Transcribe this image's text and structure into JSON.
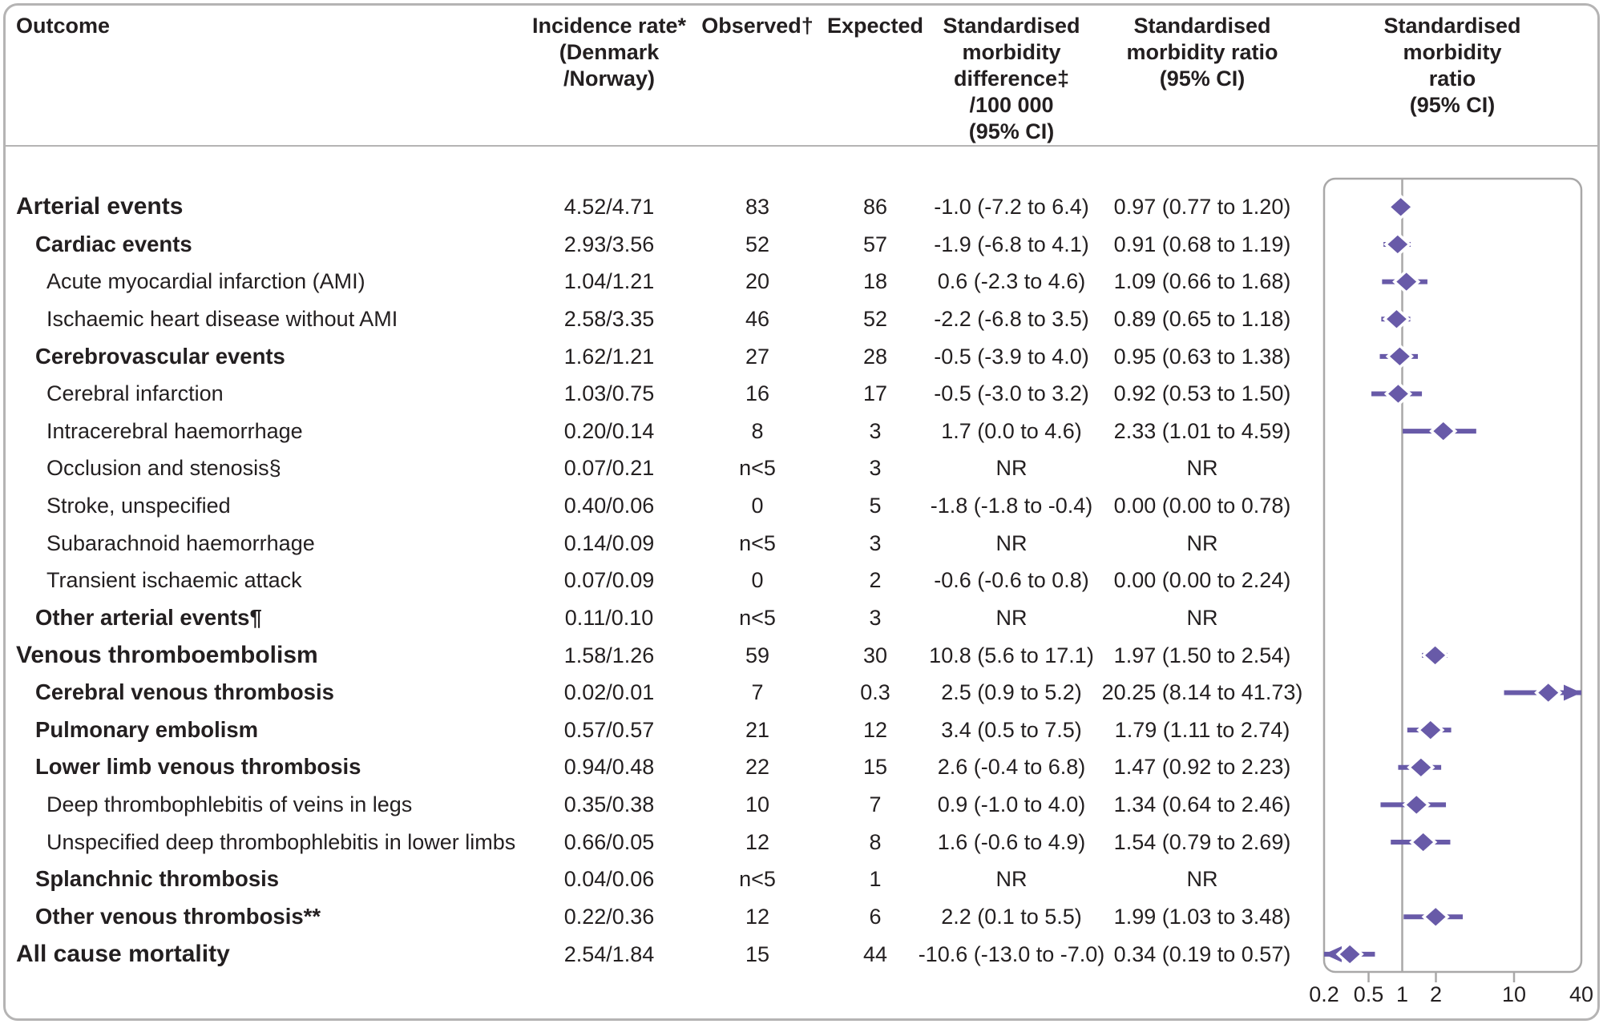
{
  "colors": {
    "accent": "#685aa8",
    "frame_gray": "#b5b4b4",
    "panel_gray": "#a9a8a8",
    "text": "#231f20"
  },
  "header": {
    "outcome": "Outcome",
    "incidence": "Incidence rate*\n(Denmark\n/Norway)",
    "observed": "Observed†",
    "expected": "Expected",
    "smd": "Standardised\nmorbidity\ndifference‡\n/100 000\n(95% CI)",
    "smr": "Standardised\nmorbidity ratio\n(95% CI)",
    "forest": "Standardised\nmorbidity ratio\n(95% CI)"
  },
  "chart_data": {
    "type": "forest",
    "x_scale": "log",
    "x_range": [
      0.2,
      40
    ],
    "x_ticks": [
      0.2,
      0.5,
      1,
      2,
      10,
      40
    ],
    "x_tick_labels": [
      "0.2",
      "0.5",
      "1",
      "2",
      "10",
      "40"
    ],
    "x_tick_marks": [
      0.5,
      2,
      10
    ],
    "reference_line": 1,
    "legend": "Standardised morbidity ratio (95% CI)",
    "columns": [
      "Outcome",
      "Incidence rate* (Denmark/Norway)",
      "Observed†",
      "Expected",
      "Standardised morbidity difference‡ /100 000 (95% CI)",
      "Standardised morbidity ratio (95% CI)"
    ],
    "rows": [
      {
        "outcome": "Arterial events",
        "indent": 0,
        "bold": true,
        "rate": "4.52/4.71",
        "observed": "83",
        "expected": "86",
        "smd": "-1.0 (-7.2 to 6.4)",
        "smr": "0.97 (0.77 to 1.20)",
        "est": 0.97,
        "lo": 0.77,
        "hi": 1.2
      },
      {
        "outcome": "Cardiac events",
        "indent": 1,
        "bold": true,
        "rate": "2.93/3.56",
        "observed": "52",
        "expected": "57",
        "smd": "-1.9 (-6.8 to 4.1)",
        "smr": "0.91 (0.68 to 1.19)",
        "est": 0.91,
        "lo": 0.68,
        "hi": 1.19
      },
      {
        "outcome": "Acute myocardial infarction (AMI)",
        "indent": 2,
        "bold": false,
        "rate": "1.04/1.21",
        "observed": "20",
        "expected": "18",
        "smd": "0.6 (-2.3 to 4.6)",
        "smr": "1.09 (0.66 to 1.68)",
        "est": 1.09,
        "lo": 0.66,
        "hi": 1.68
      },
      {
        "outcome": "Ischaemic heart disease without AMI",
        "indent": 2,
        "bold": false,
        "rate": "2.58/3.35",
        "observed": "46",
        "expected": "52",
        "smd": "-2.2 (-6.8 to 3.5)",
        "smr": "0.89 (0.65 to 1.18)",
        "est": 0.89,
        "lo": 0.65,
        "hi": 1.18
      },
      {
        "outcome": "Cerebrovascular events",
        "indent": 1,
        "bold": true,
        "rate": "1.62/1.21",
        "observed": "27",
        "expected": "28",
        "smd": "-0.5 (-3.9 to 4.0)",
        "smr": "0.95 (0.63 to 1.38)",
        "est": 0.95,
        "lo": 0.63,
        "hi": 1.38
      },
      {
        "outcome": "Cerebral infarction",
        "indent": 2,
        "bold": false,
        "rate": "1.03/0.75",
        "observed": "16",
        "expected": "17",
        "smd": "-0.5 (-3.0 to 3.2)",
        "smr": "0.92 (0.53 to 1.50)",
        "est": 0.92,
        "lo": 0.53,
        "hi": 1.5
      },
      {
        "outcome": "Intracerebral haemorrhage",
        "indent": 2,
        "bold": false,
        "rate": "0.20/0.14",
        "observed": "8",
        "expected": "3",
        "smd": "1.7 (0.0 to 4.6)",
        "smr": "2.33 (1.01 to 4.59)",
        "est": 2.33,
        "lo": 1.01,
        "hi": 4.59
      },
      {
        "outcome": "Occlusion and stenosis§",
        "indent": 2,
        "bold": false,
        "rate": "0.07/0.21",
        "observed": "n<5",
        "expected": "3",
        "smd": "NR",
        "smr": "NR",
        "est": null,
        "lo": null,
        "hi": null
      },
      {
        "outcome": "Stroke, unspecified",
        "indent": 2,
        "bold": false,
        "rate": "0.40/0.06",
        "observed": "0",
        "expected": "5",
        "smd": "-1.8 (-1.8 to -0.4)",
        "smr": "0.00 (0.00 to 0.78)",
        "est": null,
        "lo": null,
        "hi": null
      },
      {
        "outcome": "Subarachnoid haemorrhage",
        "indent": 2,
        "bold": false,
        "rate": "0.14/0.09",
        "observed": "n<5",
        "expected": "3",
        "smd": "NR",
        "smr": "NR",
        "est": null,
        "lo": null,
        "hi": null
      },
      {
        "outcome": "Transient ischaemic attack",
        "indent": 2,
        "bold": false,
        "rate": "0.07/0.09",
        "observed": "0",
        "expected": "2",
        "smd": "-0.6 (-0.6 to 0.8)",
        "smr": "0.00 (0.00 to 2.24)",
        "est": null,
        "lo": null,
        "hi": null
      },
      {
        "outcome": "Other arterial events¶",
        "indent": 1,
        "bold": true,
        "rate": "0.11/0.10",
        "observed": "n<5",
        "expected": "3",
        "smd": "NR",
        "smr": "NR",
        "est": null,
        "lo": null,
        "hi": null
      },
      {
        "outcome": "Venous thromboembolism",
        "indent": 0,
        "bold": true,
        "rate": "1.58/1.26",
        "observed": "59",
        "expected": "30",
        "smd": "10.8 (5.6 to 17.1)",
        "smr": "1.97 (1.50 to 2.54)",
        "est": 1.97,
        "lo": 1.5,
        "hi": 2.54
      },
      {
        "outcome": "Cerebral venous thrombosis",
        "indent": 1,
        "bold": true,
        "rate": "0.02/0.01",
        "observed": "7",
        "expected": "0.3",
        "smd": "2.5 (0.9 to 5.2)",
        "smr": "20.25 (8.14 to 41.73)",
        "est": 20.25,
        "lo": 8.14,
        "hi": 41.73
      },
      {
        "outcome": "Pulmonary embolism",
        "indent": 1,
        "bold": true,
        "rate": "0.57/0.57",
        "observed": "21",
        "expected": "12",
        "smd": "3.4 (0.5 to 7.5)",
        "smr": "1.79 (1.11 to 2.74)",
        "est": 1.79,
        "lo": 1.11,
        "hi": 2.74
      },
      {
        "outcome": "Lower limb venous thrombosis",
        "indent": 1,
        "bold": true,
        "rate": "0.94/0.48",
        "observed": "22",
        "expected": "15",
        "smd": "2.6 (-0.4 to 6.8)",
        "smr": "1.47 (0.92 to 2.23)",
        "est": 1.47,
        "lo": 0.92,
        "hi": 2.23
      },
      {
        "outcome": "Deep thrombophlebitis of veins in legs",
        "indent": 2,
        "bold": false,
        "rate": "0.35/0.38",
        "observed": "10",
        "expected": "7",
        "smd": "0.9 (-1.0 to 4.0)",
        "smr": "1.34 (0.64 to 2.46)",
        "est": 1.34,
        "lo": 0.64,
        "hi": 2.46
      },
      {
        "outcome": "Unspecified deep thrombophlebitis in lower limbs",
        "indent": 2,
        "bold": false,
        "rate": "0.66/0.05",
        "observed": "12",
        "expected": "8",
        "smd": "1.6 (-0.6 to 4.9)",
        "smr": "1.54 (0.79 to 2.69)",
        "est": 1.54,
        "lo": 0.79,
        "hi": 2.69
      },
      {
        "outcome": "Splanchnic thrombosis",
        "indent": 1,
        "bold": true,
        "rate": "0.04/0.06",
        "observed": "n<5",
        "expected": "1",
        "smd": "NR",
        "smr": "NR",
        "est": null,
        "lo": null,
        "hi": null
      },
      {
        "outcome": "Other venous thrombosis**",
        "indent": 1,
        "bold": true,
        "rate": "0.22/0.36",
        "observed": "12",
        "expected": "6",
        "smd": "2.2 (0.1 to 5.5)",
        "smr": "1.99 (1.03 to 3.48)",
        "est": 1.99,
        "lo": 1.03,
        "hi": 3.48
      },
      {
        "outcome": "All cause mortality",
        "indent": 0,
        "bold": true,
        "rate": "2.54/1.84",
        "observed": "15",
        "expected": "44",
        "smd": "-10.6 (-13.0 to -7.0)",
        "smr": "0.34 (0.19 to 0.57)",
        "est": 0.34,
        "lo": 0.19,
        "hi": 0.57
      }
    ]
  }
}
